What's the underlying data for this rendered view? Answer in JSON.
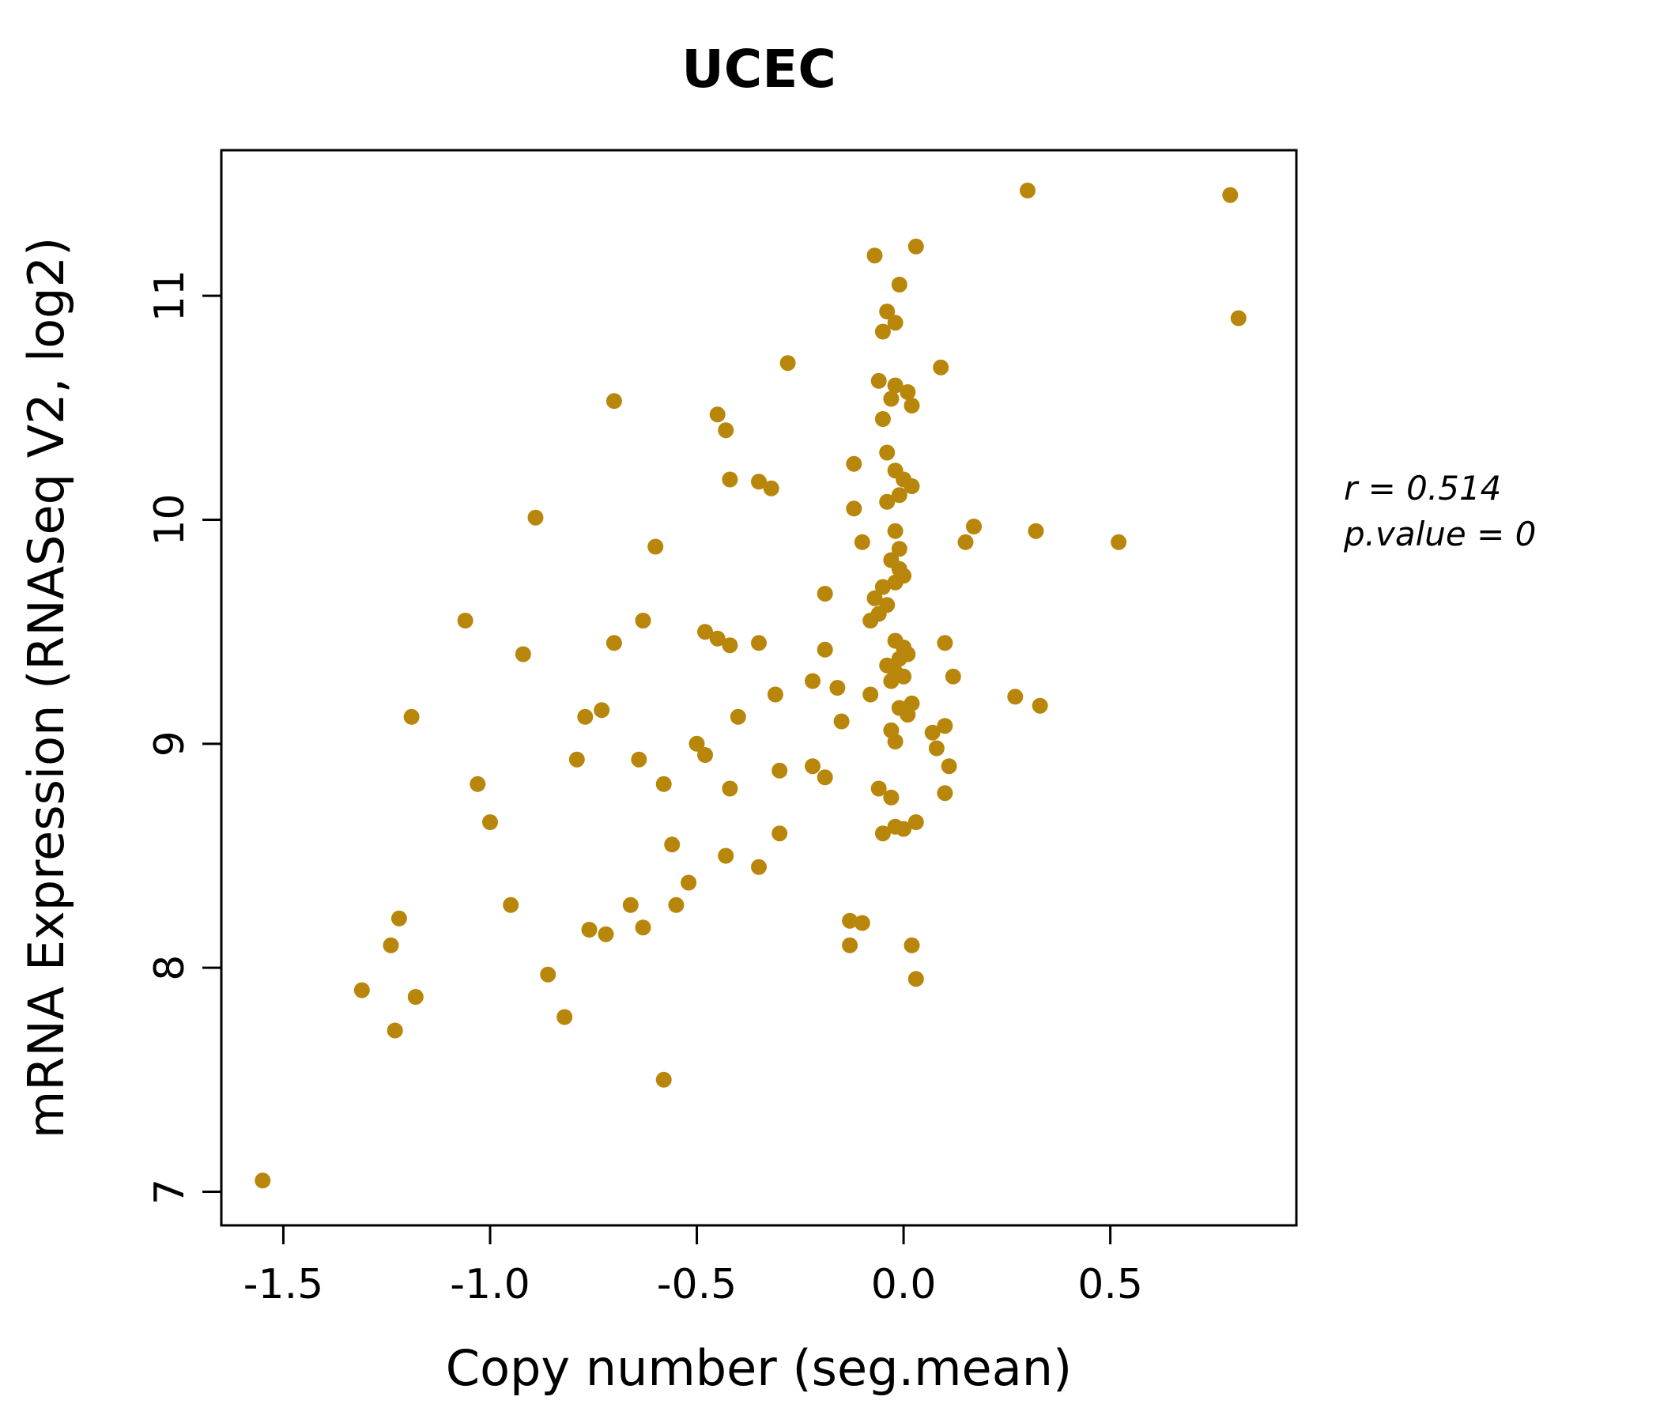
{
  "title": "UCEC",
  "colors": {
    "point": "#B8860B",
    "title": "#B8860B",
    "axis": "#000000",
    "background": "#ffffff"
  },
  "annotation": {
    "line1": "r = 0.514",
    "line2": "p.value = 0"
  },
  "chart_data": {
    "type": "scatter",
    "title": "UCEC",
    "xlabel": "Copy number (seg.mean)",
    "ylabel": "mRNA Expression (RNASeq V2, log2)",
    "xlim": [
      -1.65,
      0.95
    ],
    "ylim": [
      6.85,
      11.65
    ],
    "x_ticks": [
      -1.5,
      -1.0,
      -0.5,
      0.0,
      0.5
    ],
    "x_tick_labels": [
      "-1.5",
      "-1.0",
      "-0.5",
      "0.0",
      "0.5"
    ],
    "y_ticks": [
      7,
      8,
      9,
      10,
      11
    ],
    "y_tick_labels": [
      "7",
      "8",
      "9",
      "10",
      "11"
    ],
    "grid": false,
    "legend": null,
    "correlation_r": 0.514,
    "p_value": 0,
    "points": [
      [
        -1.55,
        7.05
      ],
      [
        0.3,
        11.47
      ],
      [
        0.79,
        11.45
      ],
      [
        0.81,
        10.9
      ],
      [
        -0.07,
        11.18
      ],
      [
        0.03,
        11.22
      ],
      [
        -0.01,
        11.05
      ],
      [
        -0.04,
        10.93
      ],
      [
        -0.02,
        10.88
      ],
      [
        -0.05,
        10.84
      ],
      [
        -0.28,
        10.7
      ],
      [
        0.09,
        10.68
      ],
      [
        -0.06,
        10.62
      ],
      [
        -0.02,
        10.6
      ],
      [
        0.01,
        10.57
      ],
      [
        -0.03,
        10.54
      ],
      [
        0.02,
        10.51
      ],
      [
        -0.7,
        10.53
      ],
      [
        -0.05,
        10.45
      ],
      [
        -0.45,
        10.47
      ],
      [
        -0.43,
        10.4
      ],
      [
        -0.04,
        10.3
      ],
      [
        -0.12,
        10.25
      ],
      [
        -0.02,
        10.22
      ],
      [
        0.0,
        10.18
      ],
      [
        0.02,
        10.15
      ],
      [
        -0.01,
        10.11
      ],
      [
        -0.42,
        10.18
      ],
      [
        -0.35,
        10.17
      ],
      [
        -0.32,
        10.14
      ],
      [
        -0.12,
        10.05
      ],
      [
        -0.04,
        10.08
      ],
      [
        -0.89,
        10.01
      ],
      [
        0.17,
        9.97
      ],
      [
        0.32,
        9.95
      ],
      [
        0.52,
        9.9
      ],
      [
        -0.6,
        9.88
      ],
      [
        -0.1,
        9.9
      ],
      [
        0.15,
        9.9
      ],
      [
        -0.02,
        9.95
      ],
      [
        -0.01,
        9.87
      ],
      [
        -0.03,
        9.82
      ],
      [
        -0.01,
        9.78
      ],
      [
        0.0,
        9.75
      ],
      [
        -0.02,
        9.72
      ],
      [
        -0.05,
        9.7
      ],
      [
        -0.07,
        9.65
      ],
      [
        -0.19,
        9.67
      ],
      [
        -0.04,
        9.62
      ],
      [
        -0.06,
        9.58
      ],
      [
        -0.08,
        9.55
      ],
      [
        -1.06,
        9.55
      ],
      [
        -0.63,
        9.55
      ],
      [
        -0.48,
        9.5
      ],
      [
        -0.7,
        9.45
      ],
      [
        -0.45,
        9.47
      ],
      [
        -0.42,
        9.44
      ],
      [
        -0.35,
        9.45
      ],
      [
        -0.92,
        9.4
      ],
      [
        -0.19,
        9.42
      ],
      [
        -0.02,
        9.46
      ],
      [
        0.0,
        9.43
      ],
      [
        0.01,
        9.4
      ],
      [
        0.1,
        9.45
      ],
      [
        -0.01,
        9.38
      ],
      [
        -0.04,
        9.35
      ],
      [
        -0.02,
        9.32
      ],
      [
        0.0,
        9.3
      ],
      [
        0.12,
        9.3
      ],
      [
        -0.03,
        9.28
      ],
      [
        -0.22,
        9.28
      ],
      [
        -0.16,
        9.25
      ],
      [
        -0.08,
        9.22
      ],
      [
        0.27,
        9.21
      ],
      [
        0.33,
        9.17
      ],
      [
        -0.01,
        9.16
      ],
      [
        0.02,
        9.18
      ],
      [
        0.01,
        9.13
      ],
      [
        -1.19,
        9.12
      ],
      [
        -0.77,
        9.12
      ],
      [
        -0.73,
        9.15
      ],
      [
        -0.4,
        9.12
      ],
      [
        -0.31,
        9.22
      ],
      [
        -0.15,
        9.1
      ],
      [
        -0.03,
        9.06
      ],
      [
        0.07,
        9.05
      ],
      [
        0.1,
        9.08
      ],
      [
        -0.02,
        9.01
      ],
      [
        0.08,
        8.98
      ],
      [
        -0.5,
        9.0
      ],
      [
        -0.48,
        8.95
      ],
      [
        -0.64,
        8.93
      ],
      [
        -0.79,
        8.93
      ],
      [
        -0.22,
        8.9
      ],
      [
        -0.3,
        8.88
      ],
      [
        -0.19,
        8.85
      ],
      [
        0.11,
        8.9
      ],
      [
        0.1,
        8.78
      ],
      [
        -0.06,
        8.8
      ],
      [
        -0.03,
        8.76
      ],
      [
        -1.03,
        8.82
      ],
      [
        -1.0,
        8.65
      ],
      [
        -0.58,
        8.82
      ],
      [
        -0.42,
        8.8
      ],
      [
        -0.56,
        8.55
      ],
      [
        -0.43,
        8.5
      ],
      [
        -0.52,
        8.38
      ],
      [
        -0.55,
        8.28
      ],
      [
        -0.35,
        8.45
      ],
      [
        -0.3,
        8.6
      ],
      [
        -0.05,
        8.6
      ],
      [
        0.0,
        8.62
      ],
      [
        0.03,
        8.65
      ],
      [
        -0.02,
        8.63
      ],
      [
        -0.95,
        8.28
      ],
      [
        -0.66,
        8.28
      ],
      [
        -0.63,
        8.18
      ],
      [
        -0.76,
        8.17
      ],
      [
        -0.72,
        8.15
      ],
      [
        -1.22,
        8.22
      ],
      [
        -1.24,
        8.1
      ],
      [
        -1.31,
        7.9
      ],
      [
        -1.18,
        7.87
      ],
      [
        -1.23,
        7.72
      ],
      [
        -0.86,
        7.97
      ],
      [
        -0.82,
        7.78
      ],
      [
        -0.13,
        8.21
      ],
      [
        -0.1,
        8.2
      ],
      [
        -0.13,
        8.1
      ],
      [
        0.02,
        8.1
      ],
      [
        0.03,
        7.95
      ],
      [
        -0.58,
        7.5
      ]
    ]
  }
}
